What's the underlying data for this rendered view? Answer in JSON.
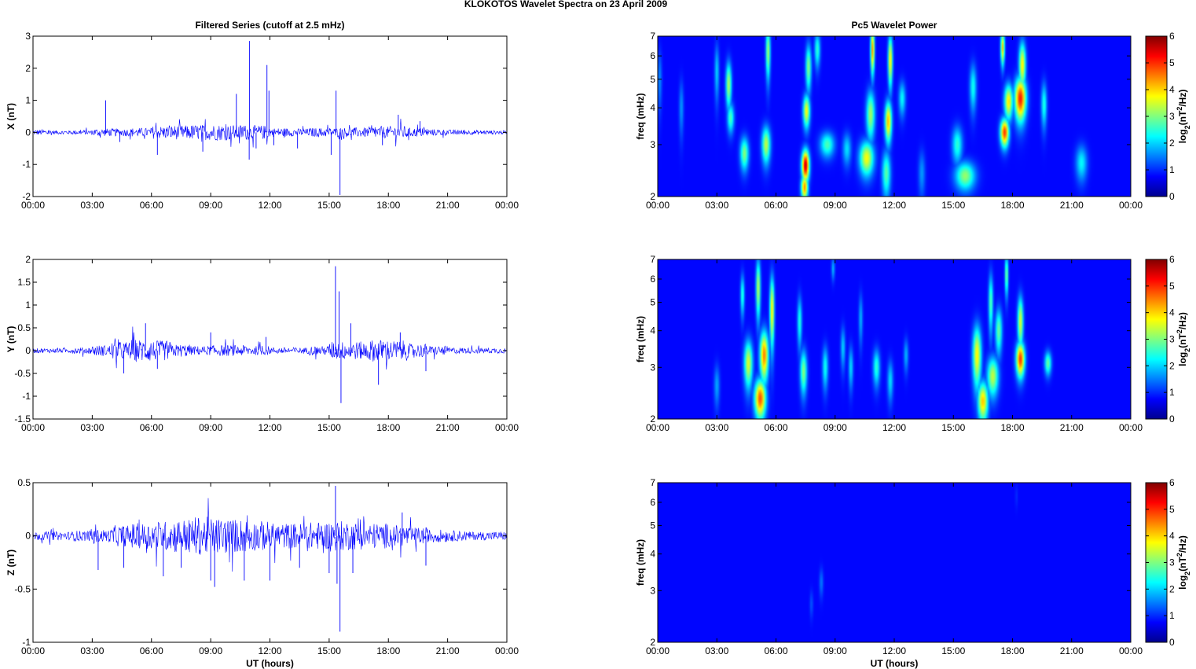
{
  "figure": {
    "suptitle": "KLOKOTOS Wavelet Spectra on 23 April     2009"
  },
  "chart_data": [
    {
      "type": "line",
      "title": "Filtered Series (cutoff at 2.5 mHz)",
      "ylabel": "X (nT)",
      "xlabel": "",
      "xlim": [
        0,
        24
      ],
      "ylim": [
        -2,
        3
      ],
      "xticks": [
        "00:00",
        "03:00",
        "06:00",
        "09:00",
        "12:00",
        "15:00",
        "18:00",
        "21:00",
        "00:00"
      ],
      "yticks": [
        -2,
        -1,
        0,
        1,
        2,
        3
      ],
      "color": "#0000ff",
      "grid": false,
      "sample_step_hours": 0.05,
      "noise_amp": [
        0.09,
        0.06,
        0.07,
        0.12,
        0.12,
        0.14,
        0.2,
        0.22,
        0.24,
        0.25,
        0.24,
        0.22,
        0.14,
        0.12,
        0.14,
        0.15,
        0.15,
        0.18,
        0.2,
        0.14,
        0.1,
        0.08,
        0.07,
        0.06
      ],
      "spikes": [
        [
          3.68,
          1.0
        ],
        [
          4.4,
          -0.3
        ],
        [
          6.3,
          -0.7
        ],
        [
          8.6,
          -0.6
        ],
        [
          10.3,
          1.2
        ],
        [
          10.97,
          2.85
        ],
        [
          10.95,
          -0.85
        ],
        [
          11.3,
          -0.5
        ],
        [
          11.85,
          2.1
        ],
        [
          11.95,
          1.3
        ],
        [
          12.2,
          -0.4
        ],
        [
          13.4,
          -0.5
        ],
        [
          15.1,
          -0.7
        ],
        [
          15.35,
          1.3
        ],
        [
          15.55,
          -1.95
        ],
        [
          17.7,
          -0.4
        ],
        [
          18.5,
          0.55
        ],
        [
          19.6,
          0.35
        ]
      ]
    },
    {
      "type": "line",
      "title": "",
      "ylabel": "Y (nT)",
      "xlabel": "",
      "xlim": [
        0,
        24
      ],
      "ylim": [
        -1.5,
        2
      ],
      "xticks": [
        "00:00",
        "03:00",
        "06:00",
        "09:00",
        "12:00",
        "15:00",
        "18:00",
        "21:00",
        "00:00"
      ],
      "yticks": [
        -1.5,
        -1,
        -0.5,
        0,
        0.5,
        1,
        1.5,
        2
      ],
      "color": "#0000ff",
      "grid": false,
      "sample_step_hours": 0.05,
      "noise_amp": [
        0.05,
        0.05,
        0.07,
        0.12,
        0.2,
        0.25,
        0.22,
        0.14,
        0.1,
        0.12,
        0.12,
        0.1,
        0.07,
        0.07,
        0.1,
        0.2,
        0.2,
        0.24,
        0.22,
        0.15,
        0.1,
        0.07,
        0.06,
        0.06
      ],
      "spikes": [
        [
          4.6,
          -0.5
        ],
        [
          5.7,
          0.6
        ],
        [
          6.3,
          -0.4
        ],
        [
          9.0,
          0.4
        ],
        [
          11.8,
          0.3
        ],
        [
          15.32,
          1.85
        ],
        [
          15.5,
          1.3
        ],
        [
          15.6,
          -1.15
        ],
        [
          16.1,
          0.6
        ],
        [
          17.5,
          -0.75
        ],
        [
          18.6,
          0.4
        ],
        [
          19.9,
          -0.45
        ]
      ]
    },
    {
      "type": "line",
      "title": "",
      "ylabel": "Z (nT)",
      "xlabel": "UT (hours)",
      "xlim": [
        0,
        24
      ],
      "ylim": [
        -1,
        0.5
      ],
      "xticks": [
        "00:00",
        "03:00",
        "06:00",
        "09:00",
        "12:00",
        "15:00",
        "18:00",
        "21:00",
        "00:00"
      ],
      "yticks": [
        -1,
        -0.5,
        0,
        0.5
      ],
      "color": "#0000ff",
      "grid": false,
      "sample_step_hours": 0.05,
      "noise_amp": [
        0.04,
        0.04,
        0.05,
        0.06,
        0.1,
        0.12,
        0.14,
        0.16,
        0.18,
        0.17,
        0.16,
        0.14,
        0.12,
        0.12,
        0.13,
        0.14,
        0.13,
        0.12,
        0.1,
        0.08,
        0.06,
        0.05,
        0.04,
        0.04
      ],
      "spikes": [
        [
          3.3,
          -0.32
        ],
        [
          4.6,
          -0.3
        ],
        [
          6.6,
          -0.38
        ],
        [
          7.5,
          -0.3
        ],
        [
          9.0,
          -0.42
        ],
        [
          9.2,
          -0.48
        ],
        [
          10.7,
          -0.42
        ],
        [
          12.0,
          -0.42
        ],
        [
          13.5,
          -0.3
        ],
        [
          15.0,
          -0.35
        ],
        [
          15.32,
          0.47
        ],
        [
          15.4,
          -0.45
        ],
        [
          15.55,
          -0.9
        ],
        [
          16.2,
          -0.35
        ],
        [
          18.7,
          0.22
        ],
        [
          19.9,
          -0.28
        ]
      ]
    },
    {
      "type": "heatmap",
      "title": "Pc5 Wavelet Power",
      "ylabel": "freq (mHz)",
      "xlabel": "",
      "xlim": [
        0,
        24
      ],
      "ylim_mHz": [
        2,
        7
      ],
      "y_scale": "log",
      "xticks": [
        "00:00",
        "03:00",
        "06:00",
        "09:00",
        "12:00",
        "15:00",
        "18:00",
        "21:00",
        "00:00"
      ],
      "yticks": [
        2,
        3,
        4,
        5,
        6,
        7
      ],
      "colorbar": {
        "label": "log2(nT²/Hz)",
        "ticks": [
          0,
          1,
          2,
          3,
          4,
          5,
          6
        ],
        "range": [
          0,
          6
        ],
        "colormap": "jet"
      },
      "blobs": [
        {
          "t": 7.5,
          "f": 2.55,
          "power": 5.6,
          "dt": 0.13,
          "df": 0.22
        },
        {
          "t": 7.45,
          "f": 2.15,
          "power": 4.2,
          "dt": 0.12,
          "df": 0.15
        },
        {
          "t": 7.55,
          "f": 3.9,
          "power": 3.4,
          "dt": 0.12,
          "df": 0.35
        },
        {
          "t": 7.65,
          "f": 5.5,
          "power": 2.6,
          "dt": 0.1,
          "df": 0.7
        },
        {
          "t": 8.1,
          "f": 6.3,
          "power": 2.0,
          "dt": 0.1,
          "df": 0.6
        },
        {
          "t": 8.6,
          "f": 3.0,
          "power": 2.2,
          "dt": 0.25,
          "df": 0.2
        },
        {
          "t": 3.6,
          "f": 4.8,
          "power": 2.9,
          "dt": 0.1,
          "df": 0.6
        },
        {
          "t": 3.7,
          "f": 3.7,
          "power": 2.2,
          "dt": 0.12,
          "df": 0.3
        },
        {
          "t": 4.4,
          "f": 2.8,
          "power": 2.6,
          "dt": 0.15,
          "df": 0.25
        },
        {
          "t": 5.5,
          "f": 3.0,
          "power": 3.0,
          "dt": 0.15,
          "df": 0.3
        },
        {
          "t": 5.6,
          "f": 6.2,
          "power": 2.8,
          "dt": 0.08,
          "df": 0.9
        },
        {
          "t": 3.0,
          "f": 5.3,
          "power": 1.4,
          "dt": 0.08,
          "df": 0.8
        },
        {
          "t": 10.6,
          "f": 2.7,
          "power": 3.4,
          "dt": 0.25,
          "df": 0.25
        },
        {
          "t": 10.8,
          "f": 3.8,
          "power": 2.8,
          "dt": 0.15,
          "df": 0.5
        },
        {
          "t": 10.9,
          "f": 6.3,
          "power": 4.2,
          "dt": 0.07,
          "df": 0.8
        },
        {
          "t": 11.7,
          "f": 3.6,
          "power": 3.9,
          "dt": 0.12,
          "df": 0.4
        },
        {
          "t": 11.8,
          "f": 5.8,
          "power": 3.6,
          "dt": 0.08,
          "df": 0.8
        },
        {
          "t": 11.6,
          "f": 2.4,
          "power": 2.3,
          "dt": 0.15,
          "df": 0.3
        },
        {
          "t": 12.4,
          "f": 4.3,
          "power": 1.7,
          "dt": 0.12,
          "df": 0.4
        },
        {
          "t": 9.6,
          "f": 2.9,
          "power": 1.5,
          "dt": 0.15,
          "df": 0.25
        },
        {
          "t": 15.6,
          "f": 2.35,
          "power": 2.7,
          "dt": 0.35,
          "df": 0.18
        },
        {
          "t": 15.2,
          "f": 3.0,
          "power": 2.0,
          "dt": 0.18,
          "df": 0.3
        },
        {
          "t": 16.0,
          "f": 4.7,
          "power": 1.8,
          "dt": 0.12,
          "df": 0.6
        },
        {
          "t": 17.6,
          "f": 3.3,
          "power": 4.8,
          "dt": 0.15,
          "df": 0.25
        },
        {
          "t": 17.8,
          "f": 4.2,
          "power": 3.6,
          "dt": 0.15,
          "df": 0.4
        },
        {
          "t": 17.5,
          "f": 6.4,
          "power": 3.8,
          "dt": 0.07,
          "df": 0.6
        },
        {
          "t": 18.4,
          "f": 4.3,
          "power": 5.0,
          "dt": 0.2,
          "df": 0.5
        },
        {
          "t": 18.5,
          "f": 5.6,
          "power": 3.5,
          "dt": 0.12,
          "df": 0.7
        },
        {
          "t": 19.6,
          "f": 4.1,
          "power": 1.9,
          "dt": 0.1,
          "df": 0.5
        },
        {
          "t": 21.5,
          "f": 2.6,
          "power": 1.7,
          "dt": 0.2,
          "df": 0.25
        },
        {
          "t": 1.2,
          "f": 4.0,
          "power": 1.0,
          "dt": 0.08,
          "df": 0.6
        },
        {
          "t": 0.1,
          "f": 5.0,
          "power": 0.9,
          "dt": 0.08,
          "df": 0.8
        },
        {
          "t": 13.4,
          "f": 2.4,
          "power": 1.0,
          "dt": 0.12,
          "df": 0.3
        }
      ]
    },
    {
      "type": "heatmap",
      "title": "",
      "ylabel": "freq (mHz)",
      "xlabel": "",
      "xlim": [
        0,
        24
      ],
      "ylim_mHz": [
        2,
        7
      ],
      "y_scale": "log",
      "xticks": [
        "00:00",
        "03:00",
        "06:00",
        "09:00",
        "12:00",
        "15:00",
        "18:00",
        "21:00",
        "00:00"
      ],
      "yticks": [
        2,
        3,
        4,
        5,
        6,
        7
      ],
      "colorbar": {
        "label": "log2(nT²/Hz)",
        "ticks": [
          0,
          1,
          2,
          3,
          4,
          5,
          6
        ],
        "range": [
          0,
          6
        ],
        "colormap": "jet"
      },
      "blobs": [
        {
          "t": 5.2,
          "f": 2.35,
          "power": 4.6,
          "dt": 0.2,
          "df": 0.25
        },
        {
          "t": 5.4,
          "f": 3.3,
          "power": 4.3,
          "dt": 0.15,
          "df": 0.45
        },
        {
          "t": 4.6,
          "f": 3.1,
          "power": 3.2,
          "dt": 0.15,
          "df": 0.4
        },
        {
          "t": 5.1,
          "f": 5.6,
          "power": 3.0,
          "dt": 0.08,
          "df": 0.9
        },
        {
          "t": 5.8,
          "f": 4.7,
          "power": 3.6,
          "dt": 0.08,
          "df": 0.9
        },
        {
          "t": 4.3,
          "f": 5.3,
          "power": 2.0,
          "dt": 0.07,
          "df": 0.6
        },
        {
          "t": 7.4,
          "f": 2.9,
          "power": 2.6,
          "dt": 0.12,
          "df": 0.35
        },
        {
          "t": 7.2,
          "f": 4.3,
          "power": 1.9,
          "dt": 0.08,
          "df": 0.6
        },
        {
          "t": 8.5,
          "f": 3.0,
          "power": 1.8,
          "dt": 0.1,
          "df": 0.35
        },
        {
          "t": 9.4,
          "f": 3.5,
          "power": 1.4,
          "dt": 0.08,
          "df": 0.4
        },
        {
          "t": 9.8,
          "f": 3.0,
          "power": 1.5,
          "dt": 0.08,
          "df": 0.35
        },
        {
          "t": 11.1,
          "f": 3.0,
          "power": 2.0,
          "dt": 0.12,
          "df": 0.3
        },
        {
          "t": 11.8,
          "f": 2.7,
          "power": 1.5,
          "dt": 0.1,
          "df": 0.3
        },
        {
          "t": 12.6,
          "f": 3.3,
          "power": 1.2,
          "dt": 0.08,
          "df": 0.3
        },
        {
          "t": 10.3,
          "f": 4.4,
          "power": 1.2,
          "dt": 0.07,
          "df": 0.6
        },
        {
          "t": 16.2,
          "f": 3.3,
          "power": 3.5,
          "dt": 0.15,
          "df": 0.55
        },
        {
          "t": 16.5,
          "f": 2.3,
          "power": 3.8,
          "dt": 0.18,
          "df": 0.25
        },
        {
          "t": 17.0,
          "f": 2.8,
          "power": 3.0,
          "dt": 0.2,
          "df": 0.3
        },
        {
          "t": 16.9,
          "f": 5.0,
          "power": 2.3,
          "dt": 0.08,
          "df": 0.8
        },
        {
          "t": 17.3,
          "f": 4.0,
          "power": 2.4,
          "dt": 0.12,
          "df": 0.5
        },
        {
          "t": 17.7,
          "f": 6.2,
          "power": 2.6,
          "dt": 0.06,
          "df": 0.7
        },
        {
          "t": 18.4,
          "f": 3.2,
          "power": 4.8,
          "dt": 0.15,
          "df": 0.3
        },
        {
          "t": 18.4,
          "f": 4.3,
          "power": 3.2,
          "dt": 0.1,
          "df": 0.6
        },
        {
          "t": 19.8,
          "f": 3.1,
          "power": 2.4,
          "dt": 0.12,
          "df": 0.2
        },
        {
          "t": 3.0,
          "f": 2.6,
          "power": 1.1,
          "dt": 0.1,
          "df": 0.3
        },
        {
          "t": 8.9,
          "f": 6.5,
          "power": 1.2,
          "dt": 0.06,
          "df": 0.4
        }
      ]
    },
    {
      "type": "heatmap",
      "title": "",
      "ylabel": "freq (mHz)",
      "xlabel": "UT (hours)",
      "xlim": [
        0,
        24
      ],
      "ylim_mHz": [
        2,
        7
      ],
      "y_scale": "log",
      "xticks": [
        "00:00",
        "03:00",
        "06:00",
        "09:00",
        "12:00",
        "15:00",
        "18:00",
        "21:00",
        "00:00"
      ],
      "yticks": [
        2,
        3,
        4,
        5,
        6,
        7
      ],
      "colorbar": {
        "label": "log2(nT²/Hz)",
        "ticks": [
          0,
          1,
          2,
          3,
          4,
          5,
          6
        ],
        "range": [
          0,
          6
        ],
        "colormap": "jet"
      },
      "blobs": [
        {
          "t": 8.3,
          "f": 3.2,
          "power": 0.8,
          "dt": 0.07,
          "df": 0.25
        },
        {
          "t": 7.8,
          "f": 2.7,
          "power": 0.55,
          "dt": 0.06,
          "df": 0.2
        },
        {
          "t": 18.2,
          "f": 6.3,
          "power": 0.25,
          "dt": 0.05,
          "df": 0.4
        }
      ]
    }
  ]
}
